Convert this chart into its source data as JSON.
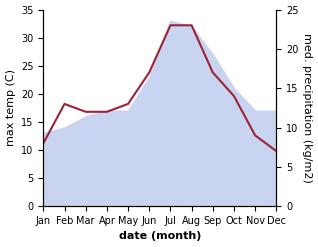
{
  "months": [
    "Jan",
    "Feb",
    "Mar",
    "Apr",
    "May",
    "Jun",
    "Jul",
    "Aug",
    "Sep",
    "Oct",
    "Nov",
    "Dec"
  ],
  "month_positions": [
    0,
    1,
    2,
    3,
    4,
    5,
    6,
    7,
    8,
    9,
    10,
    11
  ],
  "temperature": [
    13,
    14,
    16,
    17,
    17,
    23,
    33,
    32,
    27,
    21,
    17,
    17
  ],
  "precipitation": [
    8,
    13,
    12,
    12,
    13,
    17,
    23,
    23,
    17,
    14,
    9,
    7
  ],
  "temp_fill_color": "#c8d4f0",
  "precip_color": "#9b2335",
  "temp_ylim": [
    0,
    35
  ],
  "precip_ylim": [
    0,
    25
  ],
  "temp_yticks": [
    0,
    5,
    10,
    15,
    20,
    25,
    30,
    35
  ],
  "precip_yticks": [
    0,
    5,
    10,
    15,
    20,
    25
  ],
  "xlabel": "date (month)",
  "ylabel_left": "max temp (C)",
  "ylabel_right": "med. precipitation (kg/m2)",
  "label_fontsize": 8,
  "tick_fontsize": 7,
  "xlabel_fontsize": 8,
  "background_color": "#ffffff",
  "linewidth": 1.5
}
